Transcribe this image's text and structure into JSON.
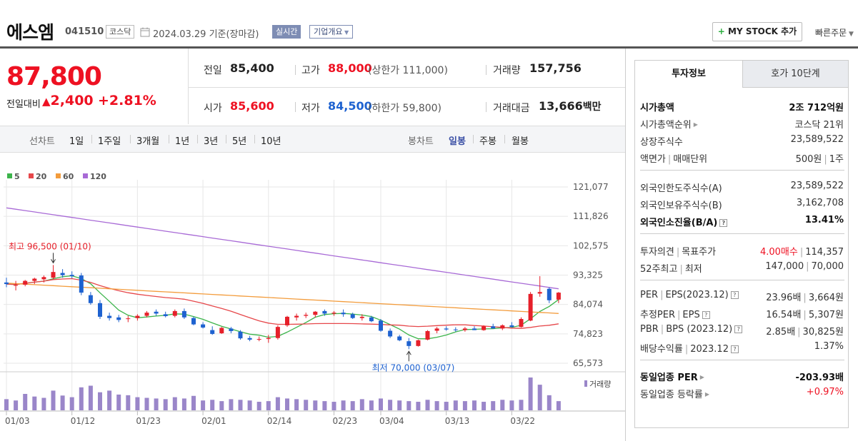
{
  "header": {
    "company_name": "에스엠",
    "company_code": "041510",
    "market": "코스닥",
    "base_date": "2024.03.29 기준(장마감)",
    "realtime": "실시간",
    "overview": "기업개요",
    "mystock": "MY STOCK 추가",
    "quick_order": "빠른주문"
  },
  "price": {
    "current": "87,800",
    "change_label": "전일대비",
    "change_amount": "2,400",
    "change_rate": "+2.81%",
    "prev_label": "전일",
    "prev_value": "85,400",
    "high_label": "고가",
    "high_value": "88,000",
    "upper_limit": "(상한가 111,000)",
    "volume_label": "거래량",
    "volume_value": "157,756",
    "open_label": "시가",
    "open_value": "85,600",
    "low_label": "저가",
    "low_value": "84,500",
    "lower_limit": "(하한가 59,800)",
    "amount_label": "거래대금",
    "amount_value": "13,666",
    "amount_unit": "백만"
  },
  "tabs": {
    "line_label": "선차트",
    "line_periods": [
      "1일",
      "1주일",
      "3개월",
      "1년",
      "3년",
      "5년",
      "10년"
    ],
    "candle_label": "봉차트",
    "candle_periods": [
      "일봉",
      "주봉",
      "월봉"
    ],
    "active_candle": "일봉"
  },
  "chart_data": {
    "type": "candlestick",
    "legend": [
      {
        "name": "5",
        "color": "#3cb44b"
      },
      {
        "name": "20",
        "color": "#e6474a"
      },
      {
        "name": "60",
        "color": "#f39c3c"
      },
      {
        "name": "120",
        "color": "#a86ad6"
      }
    ],
    "y_ticks": [
      "121,077",
      "111,826",
      "102,575",
      "93,325",
      "84,074",
      "74,823",
      "65,573"
    ],
    "ylim": [
      65573,
      121077
    ],
    "x_ticks": [
      "01/03",
      "01/12",
      "01/23",
      "02/01",
      "02/14",
      "02/23",
      "03/04",
      "03/13",
      "03/22"
    ],
    "x_tick_index": [
      0,
      7,
      14,
      21,
      28,
      35,
      40,
      47,
      54
    ],
    "high_annotation": "최고 96,500 (01/10)",
    "high_index": 5,
    "high_value": 96500,
    "low_annotation": "최저 70,000 (03/07)",
    "low_index": 43,
    "low_value": 70000,
    "volume_label": "거래량",
    "candles": [
      [
        91000,
        92500,
        89500,
        90500
      ],
      [
        90000,
        91500,
        88500,
        90200
      ],
      [
        90300,
        91800,
        89800,
        91500
      ],
      [
        91500,
        92500,
        90500,
        92200
      ],
      [
        92000,
        93200,
        91000,
        92700
      ],
      [
        92500,
        96500,
        92000,
        94300
      ],
      [
        94000,
        95200,
        92500,
        93300
      ],
      [
        93400,
        94500,
        92300,
        93000
      ],
      [
        93200,
        94000,
        87000,
        87800
      ],
      [
        87000,
        88000,
        84000,
        84500
      ],
      [
        84500,
        85500,
        79500,
        80200
      ],
      [
        80500,
        81500,
        79000,
        79800
      ],
      [
        80000,
        80800,
        78500,
        79200
      ],
      [
        79500,
        80500,
        78500,
        79700
      ],
      [
        79800,
        81000,
        79000,
        80500
      ],
      [
        80500,
        82000,
        80000,
        81500
      ],
      [
        81800,
        82500,
        80500,
        81200
      ],
      [
        81000,
        81800,
        80000,
        80400
      ],
      [
        80500,
        82500,
        80000,
        82000
      ],
      [
        82000,
        82800,
        79500,
        80000
      ],
      [
        79800,
        80200,
        77500,
        77800
      ],
      [
        77800,
        78500,
        76500,
        76800
      ],
      [
        76000,
        77200,
        74500,
        74800
      ],
      [
        75000,
        77000,
        74800,
        76700
      ],
      [
        76500,
        77000,
        75000,
        75700
      ],
      [
        75500,
        76000,
        73000,
        73400
      ],
      [
        73500,
        74200,
        72500,
        73000
      ],
      [
        73000,
        74000,
        72500,
        73200
      ],
      [
        73200,
        74500,
        72000,
        73500
      ],
      [
        73500,
        77500,
        73000,
        77000
      ],
      [
        77500,
        80500,
        77000,
        80200
      ],
      [
        80000,
        81200,
        79000,
        80500
      ],
      [
        80500,
        81500,
        79800,
        80800
      ],
      [
        80800,
        82000,
        80000,
        81800
      ],
      [
        82000,
        82500,
        80500,
        81200
      ],
      [
        81200,
        82000,
        80500,
        81500
      ],
      [
        81500,
        82500,
        80200,
        81000
      ],
      [
        81000,
        81500,
        79500,
        79800
      ],
      [
        79800,
        81000,
        79000,
        80200
      ],
      [
        80000,
        80500,
        78500,
        78800
      ],
      [
        79000,
        79500,
        75500,
        75800
      ],
      [
        75800,
        76500,
        73500,
        74000
      ],
      [
        74000,
        74500,
        72500,
        72800
      ],
      [
        72500,
        73500,
        70000,
        71000
      ],
      [
        71000,
        73000,
        70800,
        72800
      ],
      [
        73000,
        76000,
        72800,
        75700
      ],
      [
        75800,
        77000,
        75000,
        76500
      ],
      [
        76500,
        77200,
        75800,
        76200
      ],
      [
        76200,
        76900,
        75500,
        76000
      ],
      [
        76000,
        77000,
        75500,
        76500
      ],
      [
        76500,
        77200,
        76000,
        76000
      ],
      [
        76000,
        77500,
        75800,
        77200
      ],
      [
        77200,
        78000,
        76500,
        76500
      ],
      [
        76500,
        77800,
        76000,
        77500
      ],
      [
        77500,
        78500,
        76800,
        77000
      ],
      [
        77000,
        80000,
        76800,
        79500
      ],
      [
        79000,
        88000,
        78800,
        87400
      ],
      [
        87500,
        93000,
        86500,
        88000
      ],
      [
        89000,
        89500,
        84500,
        85400
      ],
      [
        85600,
        88000,
        84500,
        87800
      ]
    ],
    "volumes": [
      34,
      30,
      50,
      42,
      38,
      60,
      45,
      40,
      70,
      75,
      55,
      60,
      48,
      46,
      40,
      38,
      36,
      34,
      40,
      36,
      44,
      30,
      32,
      28,
      34,
      32,
      30,
      26,
      28,
      40,
      36,
      34,
      32,
      30,
      28,
      26,
      30,
      28,
      34,
      30,
      36,
      32,
      30,
      28,
      26,
      32,
      28,
      26,
      30,
      28,
      30,
      26,
      28,
      32,
      30,
      32,
      100,
      78,
      46,
      28
    ]
  },
  "info": {
    "tab_invest": "투자정보",
    "tab_quote": "호가 10단계",
    "market_cap_label": "시가총액",
    "market_cap": "2조 712억원",
    "cap_rank_label": "시가총액순위",
    "cap_rank": "코스닥 21위",
    "shares_label": "상장주식수",
    "shares": "23,589,522",
    "par_label": "액면가",
    "trade_unit_label": "매매단위",
    "par_value": "500원",
    "trade_unit": "1주",
    "foreign_limit_label": "외국인한도주식수(A)",
    "foreign_limit": "23,589,522",
    "foreign_hold_label": "외국인보유주식수(B)",
    "foreign_hold": "3,162,708",
    "foreign_rate_label": "외국인소진율(B/A)",
    "foreign_rate": "13.41%",
    "opinion_label": "투자의견",
    "target_label": "목표주가",
    "opinion": "4.00매수",
    "target": "114,357",
    "w52_label1": "52주최고",
    "w52_label2": "최저",
    "w52_high": "147,000",
    "w52_low": "70,000",
    "per_label": "PER",
    "eps_label": "EPS(2023.12)",
    "per": "23.96배",
    "eps": "3,664원",
    "eper_label": "추정PER",
    "eeps_label": "EPS",
    "eper": "16.54배",
    "eeps": "5,307원",
    "pbr_label": "PBR",
    "bps_label": "BPS (2023.12)",
    "pbr": "2.85배",
    "bps": "30,825원",
    "div_label": "배당수익률",
    "div_period": "2023.12",
    "div": "1.37%",
    "industry_per_label": "동일업종 PER",
    "industry_per": "-203.93배",
    "industry_rate_label": "동일업종 등락률",
    "industry_rate": "+0.97%"
  }
}
